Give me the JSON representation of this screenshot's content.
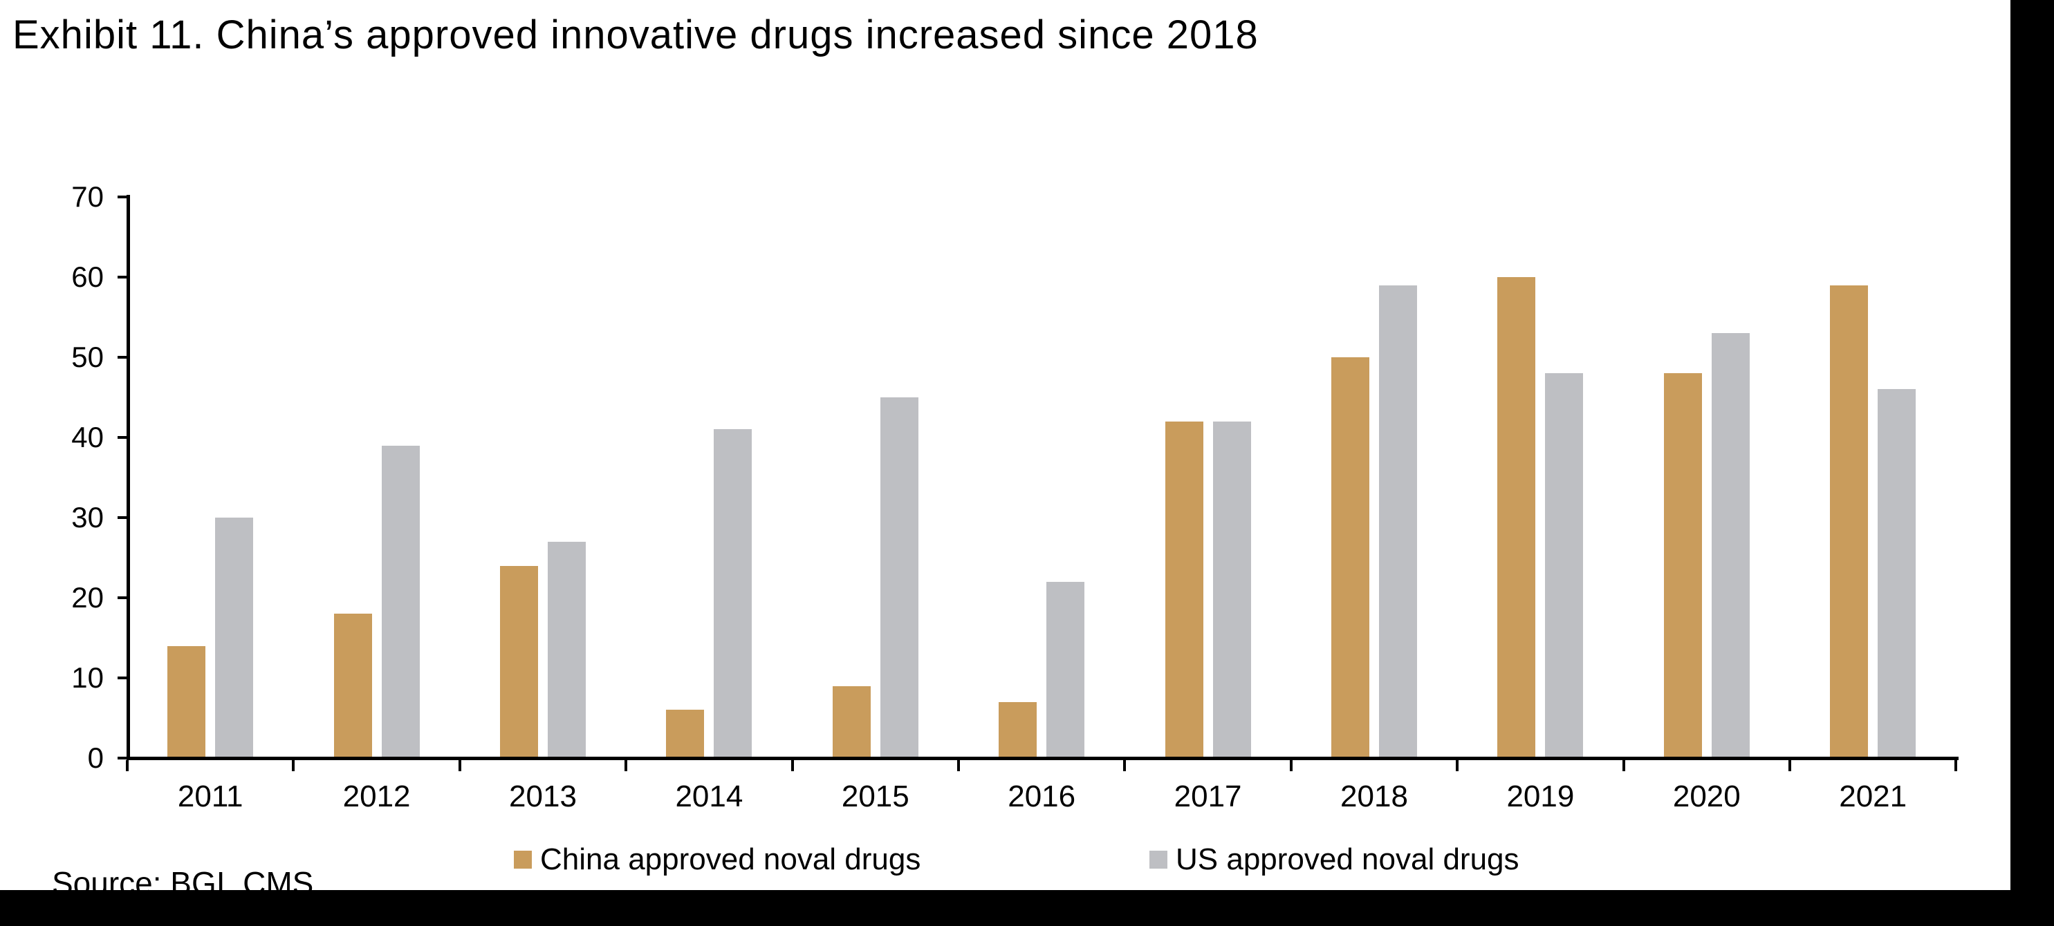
{
  "page": {
    "title": "Exhibit 11. China’s approved innovative drugs increased since 2018",
    "source_note": "Source: BGI, CMS"
  },
  "colors": {
    "china_bar": "#C99C5C",
    "us_bar": "#BEBFC3",
    "axis": "#000000",
    "text": "#000000",
    "footer_bar": "#000000"
  },
  "chart_data": {
    "type": "bar",
    "title": "Exhibit 11. China’s approved innovative drugs increased since 2018",
    "categories": [
      "2011",
      "2012",
      "2013",
      "2014",
      "2015",
      "2016",
      "2017",
      "2018",
      "2019",
      "2020",
      "2021"
    ],
    "series": [
      {
        "name": "China approved noval drugs",
        "color_key": "china_bar",
        "values": [
          14,
          18,
          24,
          6,
          9,
          7,
          42,
          50,
          60,
          48,
          59
        ]
      },
      {
        "name": "US approved noval drugs",
        "color_key": "us_bar",
        "values": [
          30,
          39,
          27,
          41,
          45,
          22,
          42,
          59,
          48,
          53,
          46
        ]
      }
    ],
    "xlabel": "",
    "ylabel": "",
    "ylim": [
      0,
      70
    ],
    "ytick_step": 10,
    "grid": false,
    "legend_position": "bottom"
  }
}
